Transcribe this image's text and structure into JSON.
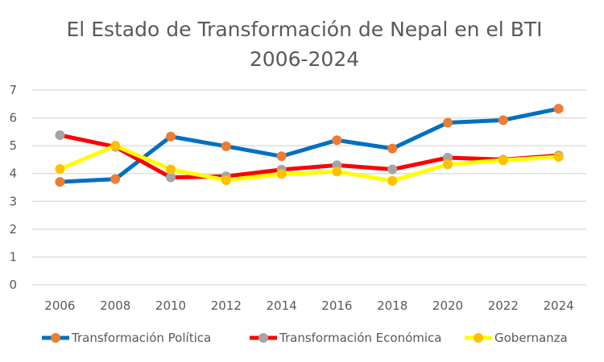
{
  "chart_data": {
    "type": "line",
    "title": "El Estado de Transformación  de Nepal en el BTI",
    "subtitle": "2006-2024",
    "xlabel": "",
    "ylabel": "",
    "x": [
      "2006",
      "2008",
      "2010",
      "2012",
      "2014",
      "2016",
      "2018",
      "2020",
      "2022",
      "2024"
    ],
    "ylim": [
      0,
      7
    ],
    "yticks": [
      "0",
      "1",
      "2",
      "3",
      "4",
      "5",
      "6",
      "7"
    ],
    "grid": true,
    "legend_position": "bottom",
    "series": [
      {
        "name": "Transformación Política",
        "line_color": "#0070c0",
        "marker_color": "#ed7d31",
        "values": [
          3.7,
          3.8,
          5.33,
          4.98,
          4.62,
          5.2,
          4.9,
          5.83,
          5.92,
          6.33
        ]
      },
      {
        "name": "Transformación Económica",
        "line_color": "#ff0000",
        "marker_color": "#a5a5a5",
        "values": [
          5.38,
          4.96,
          3.86,
          3.9,
          4.14,
          4.3,
          4.15,
          4.57,
          4.5,
          4.65
        ]
      },
      {
        "name": "Gobernanza",
        "line_color": "#ffff00",
        "marker_color": "#ffc000",
        "values": [
          4.16,
          5.0,
          4.15,
          3.76,
          3.98,
          4.07,
          3.74,
          4.33,
          4.48,
          4.6
        ]
      }
    ]
  }
}
